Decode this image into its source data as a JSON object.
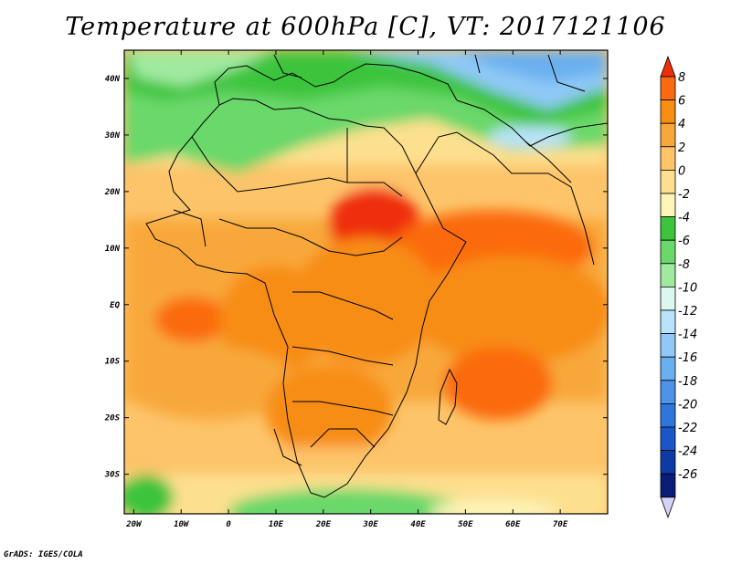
{
  "title": "Temperature at 600hPa [C], VT: 2017121106",
  "credit": "GrADS: IGES/COLA",
  "map": {
    "lon_range": [
      -22,
      80
    ],
    "lat_range": [
      -37,
      45
    ],
    "lon_ticks": [
      {
        "value": -20,
        "label": "20W"
      },
      {
        "value": -10,
        "label": "10W"
      },
      {
        "value": 0,
        "label": "0"
      },
      {
        "value": 10,
        "label": "10E"
      },
      {
        "value": 20,
        "label": "20E"
      },
      {
        "value": 30,
        "label": "30E"
      },
      {
        "value": 40,
        "label": "40E"
      },
      {
        "value": 50,
        "label": "50E"
      },
      {
        "value": 60,
        "label": "60E"
      },
      {
        "value": 70,
        "label": "70E"
      }
    ],
    "lat_ticks": [
      {
        "value": 40,
        "label": "40N"
      },
      {
        "value": 30,
        "label": "30N"
      },
      {
        "value": 20,
        "label": "20N"
      },
      {
        "value": 10,
        "label": "10N"
      },
      {
        "value": 0,
        "label": "EQ"
      },
      {
        "value": -10,
        "label": "10S"
      },
      {
        "value": -20,
        "label": "20S"
      },
      {
        "value": -30,
        "label": "30S"
      }
    ]
  },
  "colorbar": {
    "labels": [
      "8",
      "6",
      "4",
      "2",
      "0",
      "-2",
      "-4",
      "-6",
      "-8",
      "-10",
      "-12",
      "-14",
      "-16",
      "-18",
      "-20",
      "-22",
      "-24",
      "-26"
    ],
    "colors": [
      "#ef2d0a",
      "#fb6a10",
      "#f88d12",
      "#f8a83a",
      "#fdc46a",
      "#fde08f",
      "#fdf4b8",
      "#3cc43c",
      "#6bd86b",
      "#a0eaa0",
      "#dcf7ef",
      "#b8e3fb",
      "#90c9f7",
      "#6ab0f0",
      "#4e93ea",
      "#2e76de",
      "#1a56c8",
      "#0e3aa6",
      "#0a1c78",
      "#d6d2f6"
    ]
  }
}
